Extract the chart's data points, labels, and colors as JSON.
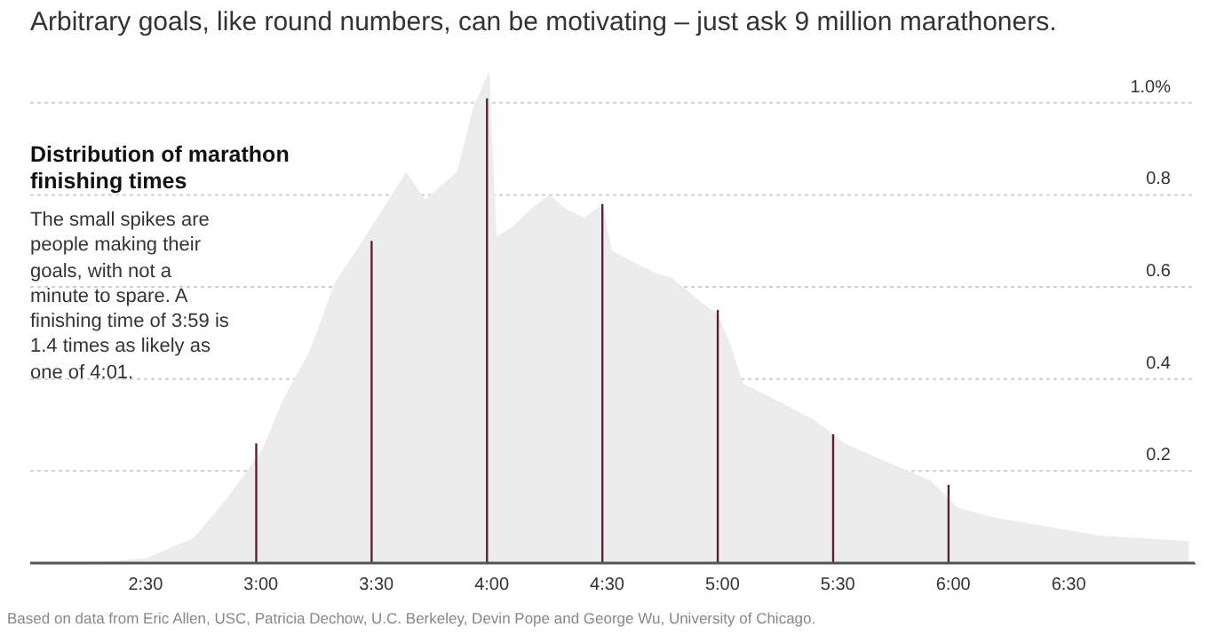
{
  "chart_data": {
    "type": "area",
    "title": "Arbitrary goals, like round numbers, can be motivating – just ask 9 million marathoners.",
    "annotations": [
      "Distribution of marathon finishing times",
      "The small spikes are people making their goals, with not a minute to spare. A finishing time of 3:59 is 1.4 times as likely as one of 4:01.",
      "Based on data from Eric Allen, USC, Patricia Dechow, U.C. Berkeley, Devin Pope and George Wu, University of Chicago."
    ],
    "series": [
      {
        "color": "#ececec",
        "x": [
          2.1,
          2.32,
          2.5,
          2.71,
          2.86,
          3.01,
          3.09,
          3.21,
          3.32,
          3.44,
          3.63,
          3.71,
          3.85,
          3.92,
          3.99,
          4.02,
          4.09,
          4.17,
          4.25,
          4.32,
          4.4,
          4.48,
          4.52,
          4.59,
          4.71,
          4.78,
          4.9,
          4.98,
          5.03,
          5.09,
          5.25,
          5.4,
          5.53,
          5.71,
          5.9,
          6.02,
          6.17,
          6.4,
          6.63,
          7.02
        ],
        "values": [
          0,
          0.003,
          0.01,
          0.055,
          0.145,
          0.25,
          0.35,
          0.46,
          0.61,
          0.7,
          0.85,
          0.79,
          0.85,
          0.99,
          1.07,
          0.71,
          0.73,
          0.77,
          0.8,
          0.77,
          0.75,
          0.78,
          0.68,
          0.66,
          0.63,
          0.62,
          0.57,
          0.54,
          0.48,
          0.39,
          0.35,
          0.31,
          0.26,
          0.22,
          0.18,
          0.12,
          0.1,
          0.08,
          0.06,
          0.048
        ]
      },
      {
        "type": "bar",
        "color": "#5e1a3a",
        "x": [
          2.98,
          3.48,
          3.98,
          4.48,
          4.98,
          5.48,
          5.98
        ],
        "values": [
          0.26,
          0.7,
          1.01,
          0.78,
          0.55,
          0.28,
          0.17
        ]
      }
    ],
    "xlim": [
      2.0,
      7.05
    ],
    "ylim": [
      0,
      1.1
    ],
    "xticks": [
      {
        "value": 2.5,
        "label": "2:30"
      },
      {
        "value": 3,
        "label": "3:00"
      },
      {
        "value": 3.5,
        "label": "3:30"
      },
      {
        "value": 4,
        "label": "4:00"
      },
      {
        "value": 4.5,
        "label": "4:30"
      },
      {
        "value": 5,
        "label": "5:00"
      },
      {
        "value": 5.5,
        "label": "5:30"
      },
      {
        "value": 6,
        "label": "6:00"
      },
      {
        "value": 6.5,
        "label": "6:30"
      }
    ],
    "yticks": [
      {
        "value": 0.2,
        "label": "0.2"
      },
      {
        "value": 0.4,
        "label": "0.4"
      },
      {
        "value": 0.6,
        "label": "0.6"
      },
      {
        "value": 0.8,
        "label": "0.8"
      },
      {
        "value": 1.0,
        "label": "1.0%"
      }
    ],
    "grid": "y",
    "legend": false
  }
}
